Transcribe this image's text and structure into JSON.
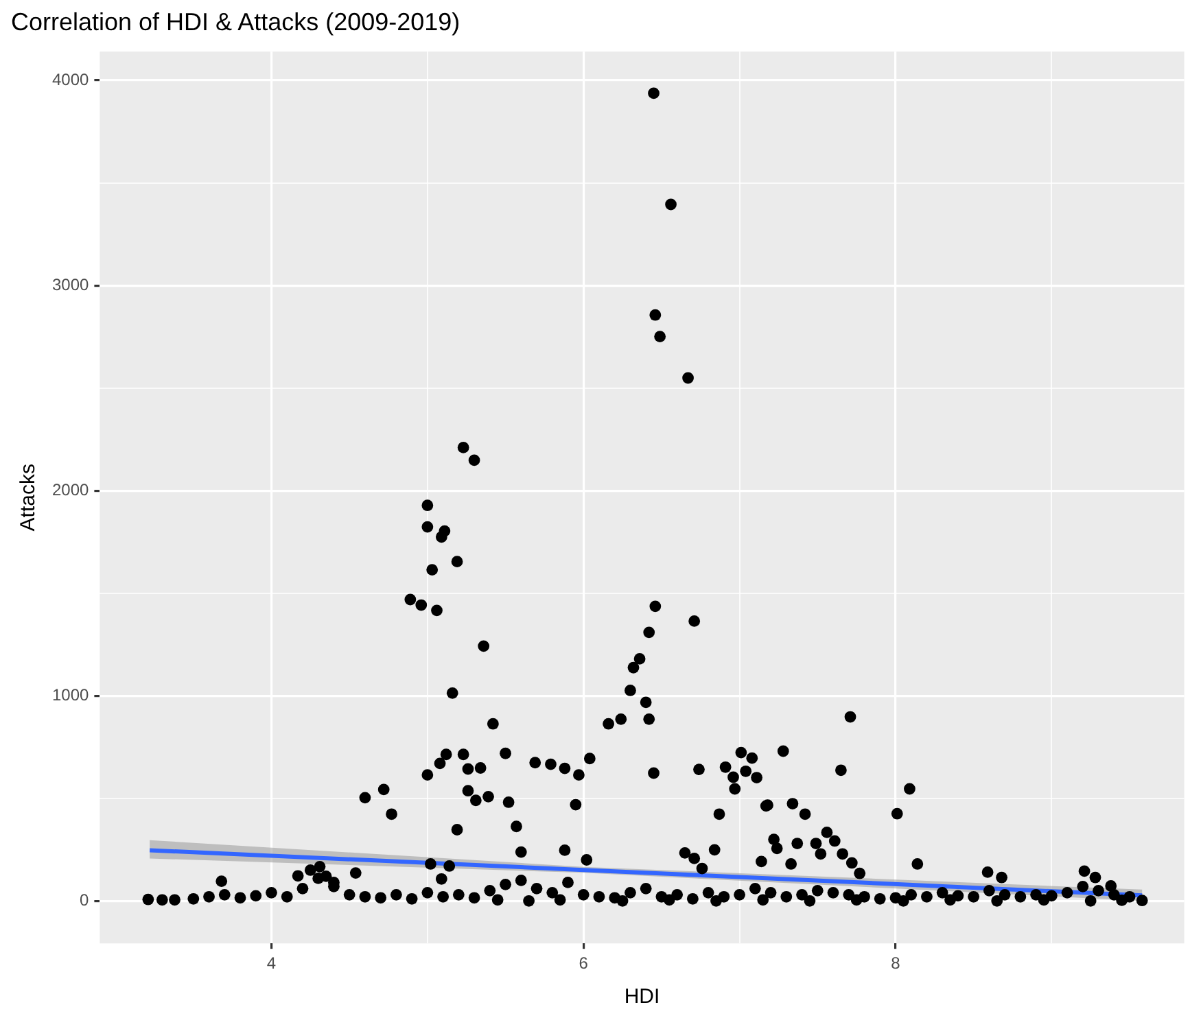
{
  "chart_data": {
    "type": "scatter",
    "title": "Correlation of HDI & Attacks (2009-2019)",
    "xlabel": "HDI",
    "ylabel": "Attacks",
    "xlim": [
      2.9,
      9.85
    ],
    "ylim": [
      -207,
      4140
    ],
    "xticks": [
      4,
      {
        "value": 5,
        "label": null
      },
      6,
      {
        "value": 7,
        "label": null
      },
      8,
      {
        "value": 9,
        "label": null
      }
    ],
    "yticks": [
      0,
      {
        "value": 500,
        "label": null
      },
      1000,
      {
        "value": 1500,
        "label": null
      },
      2000,
      {
        "value": 2500,
        "label": null
      },
      3000,
      {
        "value": 3500,
        "label": null
      },
      4000
    ],
    "grid": true,
    "legend": false,
    "series": [
      {
        "color": "#000000",
        "marker": "circle",
        "x": [
          6.45,
          6.56,
          6.46,
          6.49,
          6.67,
          5.23,
          5.3,
          5.0,
          5.0,
          5.11,
          5.09,
          5.03,
          5.19,
          4.89,
          4.96,
          5.06,
          5.36,
          5.16,
          5.42,
          5.12,
          5.08,
          5.0,
          5.23,
          5.26,
          5.34,
          5.5,
          5.26,
          5.31,
          5.39,
          5.52,
          5.19,
          5.57,
          5.6,
          4.6,
          4.72,
          4.77,
          5.69,
          5.79,
          5.88,
          5.97,
          6.04,
          5.95,
          5.88,
          6.02,
          6.16,
          6.24,
          6.3,
          6.32,
          6.36,
          6.42,
          6.46,
          6.4,
          6.42,
          6.45,
          6.71,
          6.74,
          6.87,
          6.84,
          6.91,
          6.96,
          6.97,
          7.01,
          7.08,
          7.04,
          7.11,
          7.17,
          6.65,
          6.71,
          6.76,
          7.14,
          7.71,
          7.28,
          7.65,
          8.09,
          8.01,
          7.18,
          7.34,
          7.42,
          7.22,
          7.24,
          7.37,
          7.49,
          7.56,
          7.61,
          7.52,
          7.66,
          7.33,
          7.72,
          7.77,
          8.14,
          8.59,
          8.68,
          9.21,
          9.28,
          9.38,
          9.58,
          3.21,
          3.3,
          3.38,
          3.68,
          4.17,
          4.31,
          4.54,
          5.09,
          4.25,
          4.35,
          4.4,
          5.02,
          5.14,
          3.5,
          3.6,
          3.7,
          3.8,
          3.9,
          4.0,
          4.1,
          4.2,
          4.3,
          4.4,
          4.5,
          4.6,
          4.7,
          4.8,
          4.9,
          5.0,
          5.1,
          5.2,
          5.3,
          5.4,
          5.5,
          5.6,
          5.7,
          5.8,
          5.9,
          6.0,
          6.1,
          6.2,
          6.3,
          6.4,
          6.5,
          6.6,
          6.7,
          6.8,
          6.9,
          7.0,
          7.1,
          7.2,
          7.3,
          7.4,
          7.5,
          7.6,
          7.7,
          7.8,
          7.9,
          8.0,
          8.1,
          8.2,
          8.3,
          8.4,
          8.5,
          8.6,
          8.7,
          8.8,
          8.9,
          9.0,
          9.1,
          9.2,
          9.3,
          9.4,
          9.5,
          5.45,
          5.65,
          5.85,
          6.25,
          6.55,
          6.85,
          7.15,
          7.45,
          7.75,
          8.05,
          8.35,
          8.65,
          8.95,
          9.25,
          9.45
        ],
        "values": [
          3937,
          3395,
          2856,
          2751,
          2549,
          2210,
          2148,
          1928,
          1823,
          1803,
          1774,
          1614,
          1654,
          1469,
          1442,
          1416,
          1242,
          1013,
          863,
          714,
          670,
          614,
          714,
          643,
          648,
          719,
          537,
          490,
          508,
          481,
          347,
          363,
          238,
          503,
          543,
          423,
          674,
          666,
          646,
          614,
          694,
          469,
          247,
          200,
          863,
          886,
          1026,
          1137,
          1180,
          1309,
          1436,
          968,
          886,
          623,
          1364,
          641,
          423,
          249,
          652,
          603,
          546,
          723,
          696,
          632,
          601,
          463,
          234,
          207,
          158,
          192,
          897,
          730,
          637,
          546,
          425,
          467,
          474,
          423,
          300,
          256,
          280,
          280,
          334,
          292,
          229,
          229,
          180,
          185,
          134,
          180,
          140,
          114,
          145,
          114,
          73,
          2,
          7,
          5,
          5,
          96,
          122,
          167,
          136,
          107,
          150,
          120,
          90,
          180,
          170,
          10,
          20,
          30,
          15,
          25,
          40,
          20,
          60,
          110,
          70,
          30,
          20,
          15,
          30,
          10,
          40,
          20,
          30,
          15,
          50,
          80,
          100,
          60,
          40,
          90,
          30,
          20,
          15,
          40,
          60,
          20,
          30,
          10,
          40,
          20,
          30,
          60,
          40,
          20,
          30,
          50,
          40,
          30,
          20,
          10,
          15,
          30,
          20,
          40,
          25,
          20,
          50,
          30,
          20,
          30,
          25,
          40,
          70,
          50,
          30,
          20,
          5,
          0,
          5,
          0,
          5,
          0,
          5,
          0,
          5,
          0,
          5,
          0,
          5,
          0,
          3
        ]
      },
      {
        "type": "line",
        "marker": "none",
        "color": "#3366ff",
        "x": [
          3.22,
          6.0,
          9.58
        ],
        "values": [
          247,
          151,
          27
        ],
        "lower": [
          207,
          137,
          0
        ],
        "upper": [
          296,
          166,
          55
        ]
      }
    ]
  }
}
